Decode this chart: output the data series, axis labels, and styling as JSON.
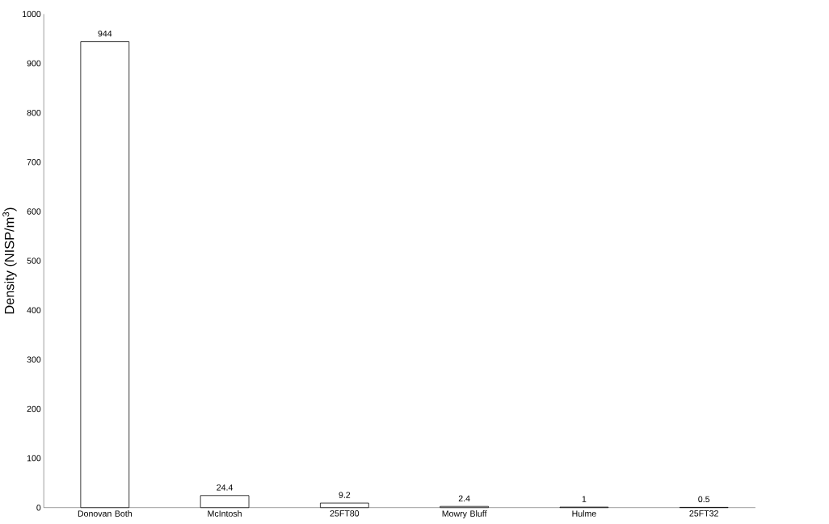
{
  "chart_data": {
    "type": "bar",
    "ylabel": "Density (NISP/m$^{3}$)",
    "categories": [
      "Donovan Both",
      "McIntosh",
      "25FT80",
      "Mowry Bluff",
      "Hulme",
      "25FT32"
    ],
    "values": [
      944,
      24.4,
      9.2,
      2.4,
      1,
      0.5
    ],
    "color": "#ffffff",
    "ylim": [
      0,
      1000
    ],
    "yticks": [
      0,
      100,
      200,
      300,
      400,
      500,
      600,
      700,
      800,
      900,
      1000
    ],
    "data_labels": true
  }
}
